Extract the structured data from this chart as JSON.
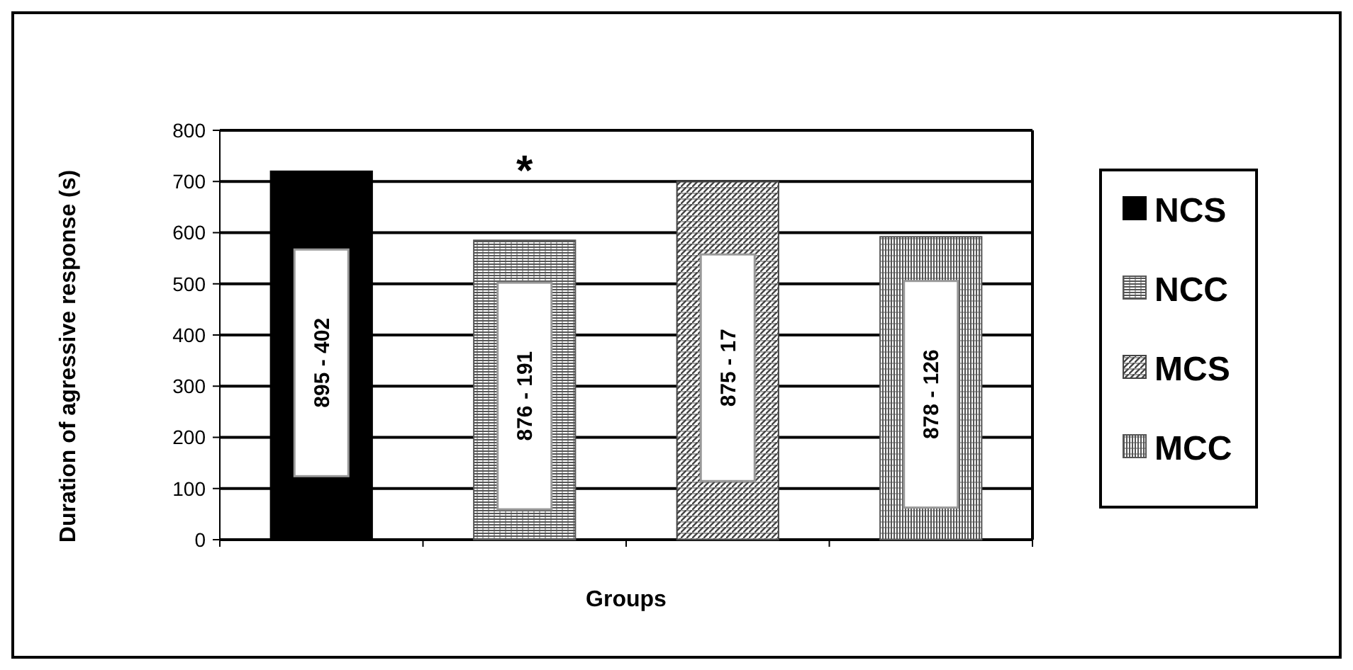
{
  "chart_data": {
    "type": "bar",
    "xlabel": "Groups",
    "ylabel": "Duration of agressive response (s)",
    "categories": [
      null,
      null,
      null,
      null
    ],
    "series": [
      {
        "name": "NCS",
        "color": "#000000",
        "values": [
          720,
          null,
          null,
          null
        ]
      },
      {
        "name": "NCC",
        "color": "#555555",
        "values": [
          null,
          585,
          null,
          null
        ]
      },
      {
        "name": "MCS",
        "color": "#444444",
        "values": [
          null,
          null,
          700,
          null
        ]
      },
      {
        "name": "MCC",
        "color": "#555555",
        "values": [
          null,
          null,
          null,
          592
        ]
      }
    ],
    "ylim": [
      0,
      800
    ],
    "yticks": [
      0,
      100,
      200,
      300,
      400,
      500,
      600,
      700,
      800
    ],
    "grid": "y",
    "legend": "right",
    "annotations": [
      "895 - 402",
      "876 - 191",
      "875 - 17",
      "878 - 126",
      "*"
    ]
  }
}
